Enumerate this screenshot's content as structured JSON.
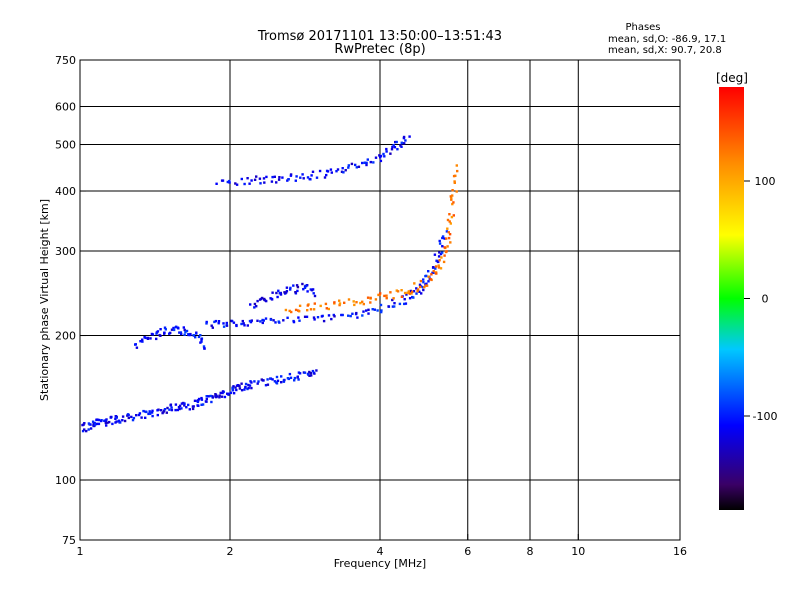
{
  "chart_data": {
    "type": "scatter",
    "title": "Tromsø 20171101 13:50:00–13:51:43",
    "subtitle": "RwPretec (8p)",
    "xlabel": "Frequency [MHz]",
    "ylabel": "Stationary phase Virtual Height [km]",
    "x_scale": "log",
    "y_scale": "log",
    "xlim": [
      1,
      16
    ],
    "ylim": [
      75,
      750
    ],
    "x_ticks": [
      1,
      2,
      4,
      6,
      8,
      10,
      16
    ],
    "x_tick_labels": [
      "1",
      "2",
      "4",
      "6",
      "8",
      "10",
      "16"
    ],
    "x_grid": [
      2,
      4,
      6,
      8,
      10
    ],
    "y_ticks": [
      75,
      100,
      200,
      300,
      400,
      500,
      600,
      750
    ],
    "y_tick_labels": [
      "75",
      "100",
      "200",
      "300",
      "400",
      "500",
      "600",
      "750"
    ],
    "y_grid": [
      100,
      200,
      300,
      400,
      500,
      600
    ],
    "grid": true,
    "stats": {
      "heading": "Phases",
      "o_line": "mean, sd,O: -86.9, 17.1",
      "x_line": "mean, sd,X:  90.7, 20.8"
    },
    "colorbar": {
      "label": "[deg]",
      "range": [
        -180,
        180
      ],
      "ticks": [
        100,
        0,
        -100
      ],
      "tick_labels": [
        "100",
        "0",
        "-100"
      ]
    },
    "series": [
      {
        "traces": [
          {
            "f": [
              1.0,
              1.05,
              1.1,
              1.15,
              1.2,
              1.3,
              1.4,
              1.5,
              1.6,
              1.7,
              1.8,
              1.9,
              2.0,
              2.1,
              2.2,
              2.4,
              2.6,
              2.8,
              3.0
            ],
            "h": [
              128,
              130,
              132,
              133,
              134,
              136,
              138,
              140,
              142,
              144,
              147,
              150,
              153,
              156,
              158,
              161,
              163,
              166,
              170
            ],
            "phase": -110
          },
          {
            "f": [
              1.3,
              1.4,
              1.5,
              1.6,
              1.7,
              1.8
            ],
            "h": [
              190,
              200,
              205,
              205,
              200,
              190
            ],
            "phase": -105
          },
          {
            "f": [
              1.8,
              2.0,
              2.2,
              2.5,
              3.0,
              3.5,
              4.0,
              4.5,
              4.8,
              5.0,
              5.2,
              5.4
            ],
            "h": [
              210,
              212,
              213,
              215,
              217,
              221,
              228,
              238,
              250,
              265,
              290,
              330
            ],
            "phase": -105
          },
          {
            "f": [
              2.2,
              2.4,
              2.6,
              2.8,
              3.0
            ],
            "h": [
              230,
              240,
              248,
              252,
              245
            ],
            "phase": -115
          },
          {
            "f": [
              2.6,
              3.0,
              3.5,
              4.0,
              4.5,
              5.0,
              5.3,
              5.5,
              5.6,
              5.7
            ],
            "h": [
              225,
              230,
              235,
              240,
              246,
              258,
              280,
              320,
              380,
              450
            ],
            "phase": 125
          },
          {
            "f": [
              1.9,
              2.2,
              2.5,
              2.8,
              3.2,
              3.6,
              4.0,
              4.3,
              4.6
            ],
            "h": [
              420,
              420,
              425,
              430,
              435,
              450,
              470,
              495,
              520
            ],
            "phase": -110
          }
        ]
      }
    ]
  }
}
